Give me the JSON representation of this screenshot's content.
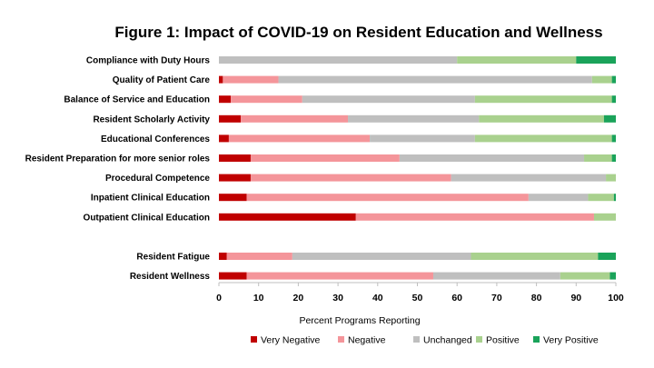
{
  "chart_data": {
    "type": "bar",
    "orientation": "horizontal",
    "stacked": true,
    "title": "Figure 1: Impact of COVID-19 on Resident Education and Wellness",
    "xlabel": "Percent Programs Reporting",
    "ylabel": "",
    "xlim": [
      0,
      100
    ],
    "xticks": [
      0,
      10,
      20,
      30,
      40,
      50,
      60,
      70,
      80,
      90,
      100
    ],
    "grid": false,
    "legend_position": "bottom",
    "colors": {
      "Very Negative": "#c00000",
      "Negative": "#f4959a",
      "Unchanged": "#bfbfbf",
      "Positive": "#a9d18e",
      "Very Positive": "#1aa35a"
    },
    "categories": [
      "Compliance with Duty Hours",
      "Quality of Patient Care",
      "Balance of Service and Education",
      "Resident Scholarly Activity",
      "Educational Conferences",
      "Resident Preparation for more senior roles",
      "Procedural Competence",
      "Inpatient Clinical Education",
      "Outpatient Clinical Education",
      "",
      "Resident Fatigue",
      "Resident Wellness"
    ],
    "series": [
      {
        "name": "Very Negative",
        "values": [
          0,
          1,
          3,
          5.5,
          2.5,
          8,
          8,
          7,
          34.5,
          0,
          2,
          7
        ]
      },
      {
        "name": "Negative",
        "values": [
          0,
          14,
          18,
          27,
          35.5,
          37.5,
          50.5,
          71,
          60,
          0,
          16.5,
          47
        ]
      },
      {
        "name": "Unchanged",
        "values": [
          60,
          79,
          43.5,
          33,
          26.5,
          46.5,
          39,
          15,
          0,
          0,
          45,
          32
        ]
      },
      {
        "name": "Positive",
        "values": [
          30,
          5,
          34.5,
          31.5,
          34.5,
          7,
          2.5,
          6.5,
          5.5,
          0,
          32,
          12.5
        ]
      },
      {
        "name": "Very Positive",
        "values": [
          10,
          1,
          1,
          3,
          1,
          1,
          0,
          0.5,
          0,
          0,
          4.5,
          1.5
        ]
      }
    ]
  }
}
